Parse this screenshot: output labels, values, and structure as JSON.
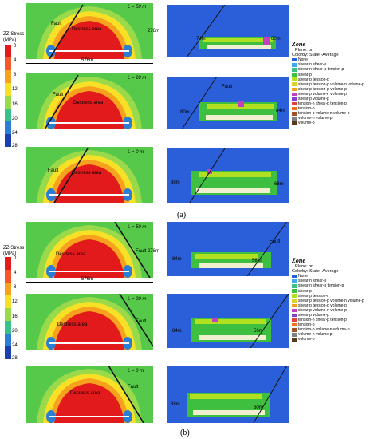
{
  "colorbar": {
    "title": "ZZ-Stress",
    "unit": "(MPa)",
    "ticks": [
      "0",
      "4",
      "8",
      "12",
      "16",
      "20",
      "24",
      "28"
    ],
    "colors": [
      "#e31a1c",
      "#f5562a",
      "#f7a21e",
      "#f7e025",
      "#9ad94a",
      "#38c28a",
      "#2a7fd4",
      "#1a3fb0"
    ]
  },
  "stress_labels": {
    "fault": "Fault",
    "destress": "Destress area",
    "dist_a1": "L = 50 m",
    "dist_a2": "L = 20 m",
    "dist_a3": "L = 0 m",
    "dist_b1": "L = 50 m",
    "dist_b2": "L = 20 m",
    "dist_b3": "L = 0 m",
    "height": "278m",
    "width": "576m"
  },
  "zone_labels": {
    "fault": "Fault",
    "a1_left": "74m",
    "a1_right": "80m",
    "a2_left": "80m",
    "a2_right": "84m",
    "a3_left": "88m",
    "a3_right": "68m",
    "b1_left": "84m",
    "b1_right": "56m",
    "b2_left": "84m",
    "b2_right": "56m",
    "b3_left": "88m",
    "b3_right": "60m"
  },
  "legend": {
    "title": "Zone",
    "plane": "Plane: on",
    "colorby": "Colorby: State  -Average",
    "items": [
      {
        "label": "None",
        "color": "#2b5fd9"
      },
      {
        "label": "shear-n shear-p",
        "color": "#3fa9f5"
      },
      {
        "label": "shear-n shear-p tension-p",
        "color": "#38c28a"
      },
      {
        "label": "shear-p",
        "color": "#3fbf3f"
      },
      {
        "label": "shear-p tension-p",
        "color": "#b0e020"
      },
      {
        "label": "shear-p tension-p volume-n volume-p",
        "color": "#e0d030"
      },
      {
        "label": "shear-p tension-p volume-p",
        "color": "#f0a020"
      },
      {
        "label": "shear-p volume-n volume-p",
        "color": "#c040c0"
      },
      {
        "label": "shear-p volume-p",
        "color": "#8040d0"
      },
      {
        "label": "tension-n shear-p tension-p",
        "color": "#e04040"
      },
      {
        "label": "tension-p",
        "color": "#f07020"
      },
      {
        "label": "tension-p volume-n volume-p",
        "color": "#a0522d"
      },
      {
        "label": "volume-n volume-p",
        "color": "#808080"
      },
      {
        "label": "volume-p",
        "color": "#5a3a1a"
      }
    ],
    "items_b": [
      {
        "label": "None",
        "color": "#2b5fd9"
      },
      {
        "label": "shear-n shear-p",
        "color": "#3fa9f5"
      },
      {
        "label": "shear-n shear-p tension-p",
        "color": "#38c28a"
      },
      {
        "label": "shear-p",
        "color": "#3fbf3f"
      },
      {
        "label": "shear-p tension-n",
        "color": "#b0e020"
      },
      {
        "label": "shear-p tension-p volume-n volume-p",
        "color": "#e0d030"
      },
      {
        "label": "shear-p tension-p volume-p",
        "color": "#f0a020"
      },
      {
        "label": "shear-p volume-n volume-p",
        "color": "#c040c0"
      },
      {
        "label": "shear-p volume-p",
        "color": "#8040d0"
      },
      {
        "label": "tension-n shear-p tension-p",
        "color": "#e04040"
      },
      {
        "label": "tension-p",
        "color": "#f07020"
      },
      {
        "label": "tension-p volume-n volume-p",
        "color": "#a0522d"
      },
      {
        "label": "volume-n volume-p",
        "color": "#808080"
      },
      {
        "label": "volume-p",
        "color": "#5a3a1a"
      }
    ]
  },
  "captions": {
    "a": "(a)",
    "b": "(b)"
  }
}
